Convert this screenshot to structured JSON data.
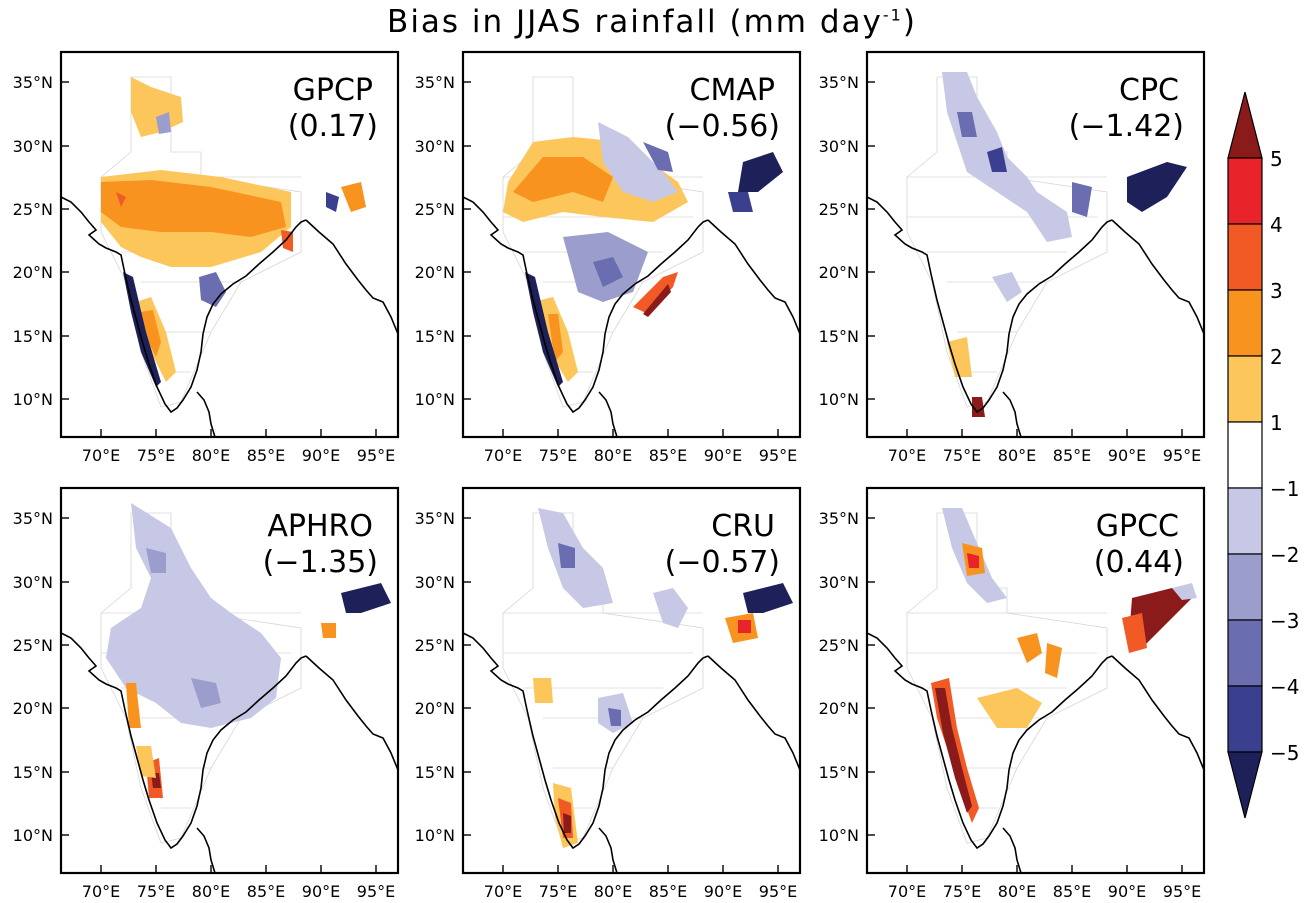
{
  "title": "Bias in JJAS rainfall (mm day",
  "title_sup": "-1",
  "lat_ticks": [
    "35°N",
    "30°N",
    "25°N",
    "20°N",
    "15°N",
    "10°N"
  ],
  "lon_ticks": [
    "70°E",
    "75°E",
    "80°E",
    "85°E",
    "90°E",
    "95°E"
  ],
  "panels": [
    {
      "name": "GPCP",
      "value": "(0.17)"
    },
    {
      "name": "CMAP",
      "value": "(−0.56)"
    },
    {
      "name": "CPC",
      "value": "(−1.42)"
    },
    {
      "name": "APHRO",
      "value": "(−1.35)"
    },
    {
      "name": "CRU",
      "value": "(−0.57)"
    },
    {
      "name": "GPCC",
      "value": "(0.44)"
    }
  ],
  "colorbar": {
    "labels": [
      "5",
      "4",
      "3",
      "2",
      "1",
      "−1",
      "−2",
      "−3",
      "−4",
      "−5"
    ],
    "colors": [
      "#8b1a1a",
      "#e8232a",
      "#f15a24",
      "#f7931e",
      "#fdc65a",
      "#ffffff",
      "#c7c8e5",
      "#9b9dcc",
      "#6a6daf",
      "#3a3f8f",
      "#1e2159"
    ]
  }
}
